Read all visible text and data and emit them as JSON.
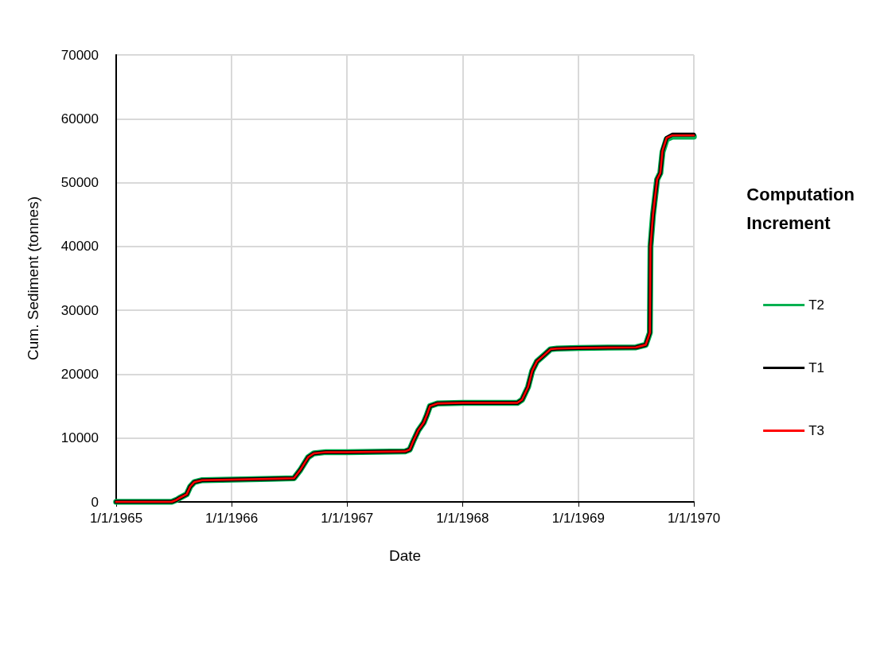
{
  "chart_data": {
    "type": "line",
    "xlabel": "Date",
    "ylabel": "Cum. Sediment (tonnes)",
    "legend_title": "Computation Increment",
    "legend": "right",
    "grid": true,
    "marker": "none",
    "line_style": "solid",
    "x": [
      "1965-01-01",
      "1965-06-25",
      "1965-07-10",
      "1965-07-20",
      "1965-08-12",
      "1965-08-23",
      "1965-09-05",
      "1965-09-30",
      "1966-01-01",
      "1966-05-03",
      "1966-07-17",
      "1966-08-06",
      "1966-08-31",
      "1966-09-18",
      "1966-10-26",
      "1967-01-01",
      "1967-07-03",
      "1967-07-18",
      "1967-07-29",
      "1967-08-14",
      "1967-08-31",
      "1967-09-10",
      "1967-09-20",
      "1967-10-13",
      "1968-01-01",
      "1968-06-22",
      "1968-07-07",
      "1968-07-26",
      "1968-08-08",
      "1968-08-23",
      "1968-09-15",
      "1968-10-05",
      "1968-10-25",
      "1969-01-01",
      "1969-07-02",
      "1969-08-02",
      "1969-08-15",
      "1969-08-17",
      "1969-08-25",
      "1969-09-07",
      "1969-09-17",
      "1969-09-24",
      "1969-10-07",
      "1969-10-25",
      "1970-01-01"
    ],
    "series": [
      {
        "name": "T2",
        "color": "#00b050",
        "values": [
          0,
          0,
          300,
          600,
          1200,
          2400,
          3100,
          3400,
          3500,
          3600,
          3700,
          5000,
          7000,
          7600,
          7800,
          7800,
          7900,
          8200,
          9500,
          11200,
          12400,
          13600,
          15000,
          15400,
          15500,
          15500,
          16000,
          18000,
          20500,
          22000,
          23000,
          23900,
          24000,
          24100,
          24200,
          24600,
          26500,
          40000,
          45000,
          50500,
          51500,
          54800,
          56800,
          57200,
          57200
        ]
      },
      {
        "name": "T1",
        "color": "#000000",
        "values": [
          0,
          0,
          300,
          600,
          1200,
          2400,
          3100,
          3400,
          3500,
          3600,
          3700,
          5000,
          7000,
          7600,
          7800,
          7800,
          7900,
          8200,
          9500,
          11200,
          12400,
          13600,
          15000,
          15400,
          15500,
          15500,
          16000,
          18000,
          20500,
          22000,
          23000,
          23900,
          24000,
          24100,
          24200,
          24600,
          26500,
          40000,
          45000,
          50500,
          51500,
          55000,
          57000,
          57500,
          57500
        ]
      },
      {
        "name": "T3",
        "color": "#ff0000",
        "values": [
          0,
          0,
          300,
          600,
          1200,
          2400,
          3100,
          3400,
          3500,
          3600,
          3700,
          5000,
          7000,
          7600,
          7800,
          7800,
          7900,
          8200,
          9500,
          11200,
          12400,
          13600,
          15000,
          15400,
          15500,
          15500,
          16000,
          18000,
          20500,
          22000,
          23000,
          23900,
          24000,
          24100,
          24200,
          24600,
          26500,
          40000,
          45000,
          50500,
          51500,
          55000,
          57000,
          57400,
          57400
        ]
      }
    ],
    "xlim": [
      "1965-01-01",
      "1970-01-01"
    ],
    "xticks": [
      {
        "value": "1965-01-01",
        "label": "1/1/1965"
      },
      {
        "value": "1966-01-01",
        "label": "1/1/1966"
      },
      {
        "value": "1967-01-01",
        "label": "1/1/1967"
      },
      {
        "value": "1968-01-01",
        "label": "1/1/1968"
      },
      {
        "value": "1969-01-01",
        "label": "1/1/1969"
      },
      {
        "value": "1970-01-01",
        "label": "1/1/1970"
      }
    ],
    "ylim": [
      0,
      70000
    ],
    "yticks": [
      0,
      10000,
      20000,
      30000,
      40000,
      50000,
      60000,
      70000
    ]
  }
}
